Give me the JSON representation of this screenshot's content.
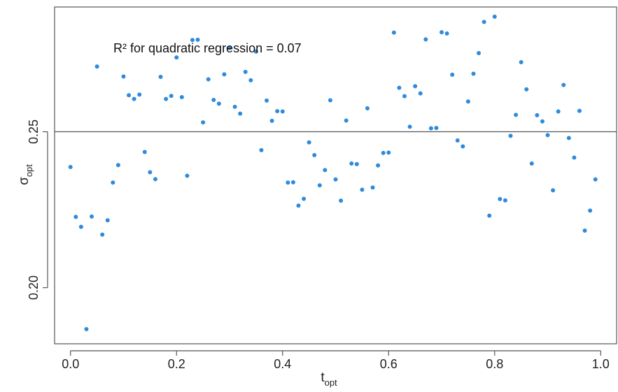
{
  "chart_data": {
    "type": "scatter",
    "xlabel": {
      "main": "t",
      "sub": "opt"
    },
    "ylabel": {
      "main": "σ",
      "sub": "opt"
    },
    "xlim": [
      -0.03,
      1.03
    ],
    "ylim": [
      0.182,
      0.29
    ],
    "x_ticks": [
      0.0,
      0.2,
      0.4,
      0.6,
      0.8,
      1.0
    ],
    "x_tick_labels": [
      "0.0",
      "0.2",
      "0.4",
      "0.6",
      "0.8",
      "1.0"
    ],
    "y_ticks": [
      0.2,
      0.25
    ],
    "y_tick_labels": [
      "0.20",
      "0.25"
    ],
    "reference_line_y": 0.25,
    "annotation": "R² for quadratic regression = 0.07",
    "grid": false,
    "point_color": "#2e8bdc",
    "line_color": "#555555",
    "points": [
      [
        0.0,
        0.2387
      ],
      [
        0.01,
        0.2227
      ],
      [
        0.02,
        0.2195
      ],
      [
        0.03,
        0.1867
      ],
      [
        0.04,
        0.2228
      ],
      [
        0.05,
        0.2709
      ],
      [
        0.06,
        0.217
      ],
      [
        0.07,
        0.2216
      ],
      [
        0.08,
        0.2337
      ],
      [
        0.09,
        0.2393
      ],
      [
        0.1,
        0.2677
      ],
      [
        0.11,
        0.2617
      ],
      [
        0.12,
        0.2605
      ],
      [
        0.13,
        0.2619
      ],
      [
        0.14,
        0.2435
      ],
      [
        0.15,
        0.237
      ],
      [
        0.16,
        0.2348
      ],
      [
        0.17,
        0.2676
      ],
      [
        0.18,
        0.2605
      ],
      [
        0.19,
        0.2615
      ],
      [
        0.2,
        0.2738
      ],
      [
        0.21,
        0.2611
      ],
      [
        0.22,
        0.2359
      ],
      [
        0.23,
        0.2794
      ],
      [
        0.24,
        0.2795
      ],
      [
        0.25,
        0.253
      ],
      [
        0.26,
        0.2668
      ],
      [
        0.27,
        0.2602
      ],
      [
        0.28,
        0.259
      ],
      [
        0.29,
        0.2684
      ],
      [
        0.3,
        0.2769
      ],
      [
        0.31,
        0.258
      ],
      [
        0.32,
        0.2558
      ],
      [
        0.33,
        0.2692
      ],
      [
        0.34,
        0.2665
      ],
      [
        0.35,
        0.2757
      ],
      [
        0.36,
        0.2441
      ],
      [
        0.37,
        0.26
      ],
      [
        0.38,
        0.2535
      ],
      [
        0.39,
        0.2566
      ],
      [
        0.4,
        0.2565
      ],
      [
        0.41,
        0.2337
      ],
      [
        0.42,
        0.2338
      ],
      [
        0.43,
        0.2263
      ],
      [
        0.44,
        0.2285
      ],
      [
        0.45,
        0.2466
      ],
      [
        0.46,
        0.2425
      ],
      [
        0.47,
        0.2328
      ],
      [
        0.48,
        0.2377
      ],
      [
        0.49,
        0.2601
      ],
      [
        0.5,
        0.2347
      ],
      [
        0.51,
        0.2279
      ],
      [
        0.52,
        0.2536
      ],
      [
        0.53,
        0.2398
      ],
      [
        0.54,
        0.2396
      ],
      [
        0.55,
        0.2314
      ],
      [
        0.56,
        0.2575
      ],
      [
        0.57,
        0.2321
      ],
      [
        0.58,
        0.2392
      ],
      [
        0.59,
        0.2432
      ],
      [
        0.6,
        0.2433
      ],
      [
        0.61,
        0.2818
      ],
      [
        0.62,
        0.2641
      ],
      [
        0.63,
        0.2614
      ],
      [
        0.64,
        0.2516
      ],
      [
        0.65,
        0.2646
      ],
      [
        0.66,
        0.2623
      ],
      [
        0.67,
        0.2796
      ],
      [
        0.68,
        0.2511
      ],
      [
        0.69,
        0.2512
      ],
      [
        0.7,
        0.2819
      ],
      [
        0.71,
        0.2815
      ],
      [
        0.72,
        0.2683
      ],
      [
        0.73,
        0.2472
      ],
      [
        0.74,
        0.2453
      ],
      [
        0.75,
        0.2597
      ],
      [
        0.76,
        0.2686
      ],
      [
        0.77,
        0.2752
      ],
      [
        0.78,
        0.2852
      ],
      [
        0.79,
        0.2231
      ],
      [
        0.8,
        0.2869
      ],
      [
        0.81,
        0.2284
      ],
      [
        0.82,
        0.228
      ],
      [
        0.83,
        0.2487
      ],
      [
        0.84,
        0.2554
      ],
      [
        0.85,
        0.2723
      ],
      [
        0.86,
        0.2636
      ],
      [
        0.87,
        0.2398
      ],
      [
        0.88,
        0.2553
      ],
      [
        0.89,
        0.2533
      ],
      [
        0.9,
        0.2489
      ],
      [
        0.91,
        0.2312
      ],
      [
        0.92,
        0.2565
      ],
      [
        0.93,
        0.265
      ],
      [
        0.94,
        0.248
      ],
      [
        0.95,
        0.2417
      ],
      [
        0.96,
        0.2567
      ],
      [
        0.97,
        0.2183
      ],
      [
        0.98,
        0.2247
      ],
      [
        0.99,
        0.2347
      ]
    ]
  }
}
